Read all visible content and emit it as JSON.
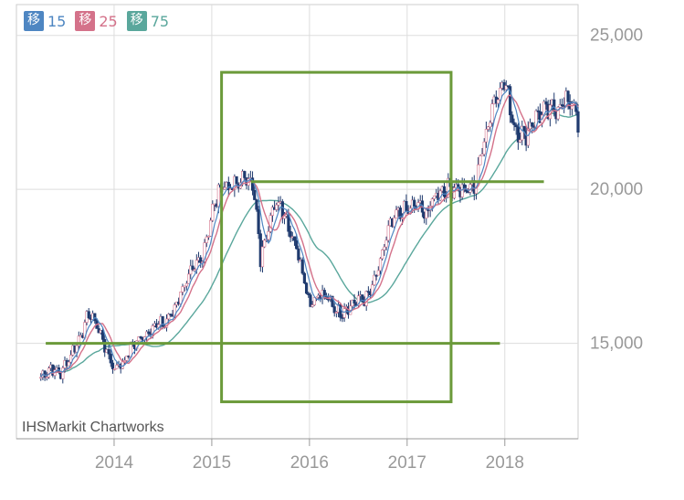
{
  "chart_data": {
    "type": "candlestick",
    "source_label": "IHSMarkit Chartworks",
    "legend": [
      {
        "kanji": "移",
        "period": "15",
        "color": "#4e86c2"
      },
      {
        "kanji": "移",
        "period": "25",
        "color": "#d4728a"
      },
      {
        "kanji": "移",
        "period": "75",
        "color": "#5aa79c"
      }
    ],
    "y_ticks": [
      "25,000",
      "20,000",
      "15,000"
    ],
    "y_tick_values": [
      25000,
      20000,
      15000
    ],
    "x_ticks": [
      "2014",
      "2015",
      "2016",
      "2017",
      "2018"
    ],
    "x_tick_values": [
      2014.0,
      2015.0,
      2016.0,
      2017.0,
      2018.0
    ],
    "xlim": [
      2013.0,
      2018.75
    ],
    "ylim": [
      11900,
      26000
    ],
    "colors": {
      "candle": "#1f3a6e",
      "ma15": "#4e86c2",
      "ma25": "#d4728a",
      "ma75": "#5aa79c",
      "annotation": "#6b9a3a",
      "grid": "#dddddd",
      "axis_text": "#999999"
    },
    "price_series": {
      "x": [
        2013.25,
        2013.35,
        2013.45,
        2013.55,
        2013.65,
        2013.75,
        2013.85,
        2013.95,
        2014.0,
        2014.1,
        2014.2,
        2014.3,
        2014.4,
        2014.5,
        2014.6,
        2014.7,
        2014.8,
        2014.9,
        2015.0,
        2015.1,
        2015.2,
        2015.3,
        2015.4,
        2015.45,
        2015.5,
        2015.6,
        2015.7,
        2015.8,
        2015.9,
        2016.0,
        2016.1,
        2016.2,
        2016.3,
        2016.4,
        2016.5,
        2016.6,
        2016.7,
        2016.8,
        2016.9,
        2017.0,
        2017.1,
        2017.2,
        2017.3,
        2017.4,
        2017.5,
        2017.6,
        2017.7,
        2017.8,
        2017.9,
        2018.0,
        2018.1,
        2018.2,
        2018.3,
        2018.4,
        2018.5,
        2018.6,
        2018.7,
        2018.75
      ],
      "y": [
        13900,
        14200,
        14000,
        14600,
        15200,
        16000,
        15400,
        14500,
        14200,
        14400,
        15000,
        15200,
        15600,
        15600,
        16000,
        16800,
        17300,
        17800,
        19200,
        20200,
        20000,
        20300,
        20400,
        19400,
        17700,
        19200,
        19600,
        18700,
        17800,
        16300,
        16600,
        16400,
        16000,
        16200,
        16400,
        16500,
        17300,
        18600,
        19200,
        19300,
        19500,
        19200,
        19900,
        20000,
        20100,
        19900,
        20200,
        21800,
        23000,
        23500,
        22000,
        21700,
        22300,
        22500,
        22600,
        22800,
        22900,
        22000
      ]
    },
    "annotations": {
      "rectangle": {
        "x": [
          2015.1,
          2017.45
        ],
        "y": [
          13100,
          23800
        ]
      },
      "lines": [
        {
          "x": [
            2013.3,
            2017.95
          ],
          "y": 15000
        },
        {
          "x": [
            2015.4,
            2018.4
          ],
          "y": 20250
        }
      ]
    },
    "grid": true
  }
}
